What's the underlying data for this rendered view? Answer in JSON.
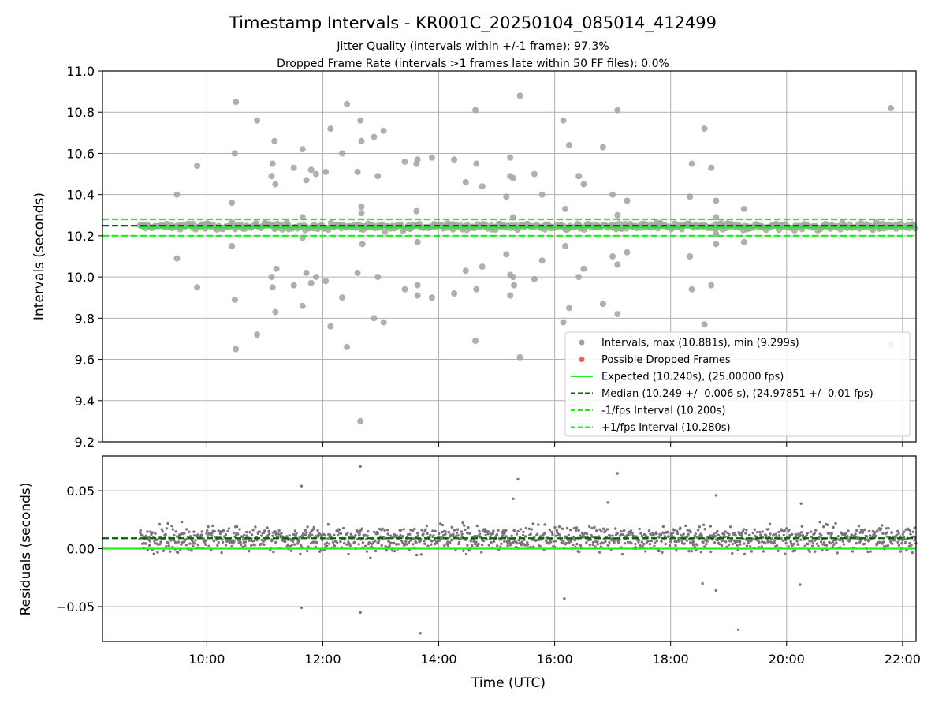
{
  "figure": {
    "title": "Timestamp Intervals - KR001C_20250104_085014_412499",
    "subtitle_line1": "Jitter Quality (intervals within +/-1 frame): 97.3%",
    "subtitle_line2": "Dropped Frame Rate (intervals >1 frames late within 50 FF files): 0.0%"
  },
  "chart_data": [
    {
      "type": "scatter",
      "xlabel": "",
      "ylabel": "Intervals (seconds)",
      "xlim": [
        "08:12",
        "22:14"
      ],
      "ylim": [
        9.2,
        11.0
      ],
      "y_ticks": [
        "9.2",
        "9.4",
        "9.6",
        "9.8",
        "10.0",
        "10.2",
        "10.4",
        "10.6",
        "10.8",
        "11.0"
      ],
      "x_ticks": [
        "10:00",
        "12:00",
        "14:00",
        "16:00",
        "18:00",
        "20:00",
        "22:00"
      ],
      "grid": true,
      "legend_position": "bottom-right",
      "legend": [
        {
          "label": "Intervals, max (10.881s), min (9.299s)",
          "marker": "circle",
          "color": "#a0a0a0"
        },
        {
          "label": "Possible Dropped Frames",
          "marker": "circle",
          "color": "#f06060"
        },
        {
          "label": "Expected (10.240s), (25.00000 fps)",
          "marker": "solid-line",
          "color": "#22ee22"
        },
        {
          "label": "Median (10.249 +/- 0.006 s), (24.97851 +/- 0.01 fps)",
          "marker": "dashed-line",
          "color": "#006400"
        },
        {
          "label": "-1/fps Interval (10.200s)",
          "marker": "dashed-line",
          "color": "#22ee22"
        },
        {
          "label": "+1/fps Interval (10.280s)",
          "marker": "dashed-line",
          "color": "#22ee22"
        }
      ],
      "reference_lines": {
        "expected": 10.24,
        "median": 10.249,
        "minus_one_fps": 10.2,
        "plus_one_fps": 10.28
      },
      "x_start": "08:50",
      "x_end": "22:14",
      "band_center": 10.245,
      "series": [
        {
          "name": "Intervals, max (10.881s), min (9.299s)",
          "points": [
            [
              "09:29",
              10.4
            ],
            [
              "09:29",
              10.09
            ],
            [
              "09:50",
              10.54
            ],
            [
              "09:50",
              9.95
            ],
            [
              "10:26",
              10.36
            ],
            [
              "10:26",
              10.15
            ],
            [
              "10:29",
              10.6
            ],
            [
              "10:29",
              9.89
            ],
            [
              "10:30",
              10.85
            ],
            [
              "10:30",
              9.65
            ],
            [
              "10:52",
              10.76
            ],
            [
              "10:52",
              9.72
            ],
            [
              "11:07",
              10.49
            ],
            [
              "11:07",
              10.0
            ],
            [
              "11:08",
              10.55
            ],
            [
              "11:08",
              9.95
            ],
            [
              "11:10",
              10.66
            ],
            [
              "11:11",
              10.45
            ],
            [
              "11:11",
              9.83
            ],
            [
              "11:12",
              10.04
            ],
            [
              "11:30",
              10.53
            ],
            [
              "11:30",
              9.96
            ],
            [
              "11:39",
              10.62
            ],
            [
              "11:39",
              10.29
            ],
            [
              "11:39",
              10.19
            ],
            [
              "11:39",
              9.86
            ],
            [
              "11:43",
              10.47
            ],
            [
              "11:43",
              10.02
            ],
            [
              "11:48",
              10.52
            ],
            [
              "11:48",
              9.97
            ],
            [
              "11:53",
              10.5
            ],
            [
              "11:53",
              10.0
            ],
            [
              "12:03",
              10.51
            ],
            [
              "12:03",
              9.98
            ],
            [
              "12:08",
              10.72
            ],
            [
              "12:08",
              9.76
            ],
            [
              "12:20",
              10.6
            ],
            [
              "12:20",
              9.9
            ],
            [
              "12:25",
              10.84
            ],
            [
              "12:25",
              9.66
            ],
            [
              "12:36",
              10.51
            ],
            [
              "12:36",
              10.02
            ],
            [
              "12:39",
              10.76
            ],
            [
              "12:39",
              9.3
            ],
            [
              "12:40",
              10.66
            ],
            [
              "12:40",
              10.34
            ],
            [
              "12:40",
              10.31
            ],
            [
              "12:41",
              10.16
            ],
            [
              "12:53",
              10.68
            ],
            [
              "12:53",
              9.8
            ],
            [
              "12:57",
              10.49
            ],
            [
              "12:57",
              10.0
            ],
            [
              "13:03",
              10.71
            ],
            [
              "13:03",
              9.78
            ],
            [
              "13:25",
              10.56
            ],
            [
              "13:25",
              9.94
            ],
            [
              "13:37",
              10.55
            ],
            [
              "13:37",
              10.32
            ],
            [
              "13:38",
              10.57
            ],
            [
              "13:38",
              10.17
            ],
            [
              "13:38",
              9.91
            ],
            [
              "13:38",
              9.96
            ],
            [
              "13:53",
              10.58
            ],
            [
              "13:53",
              9.9
            ],
            [
              "14:16",
              10.57
            ],
            [
              "14:16",
              9.92
            ],
            [
              "14:28",
              10.46
            ],
            [
              "14:28",
              10.03
            ],
            [
              "14:38",
              10.81
            ],
            [
              "14:38",
              9.69
            ],
            [
              "14:39",
              10.55
            ],
            [
              "14:39",
              9.94
            ],
            [
              "14:45",
              10.44
            ],
            [
              "14:45",
              10.05
            ],
            [
              "15:10",
              10.39
            ],
            [
              "15:10",
              10.11
            ],
            [
              "15:14",
              10.49
            ],
            [
              "15:14",
              10.01
            ],
            [
              "15:14",
              10.58
            ],
            [
              "15:14",
              9.91
            ],
            [
              "15:17",
              10.29
            ],
            [
              "15:17",
              10.48
            ],
            [
              "15:17",
              10.0
            ],
            [
              "15:18",
              9.96
            ],
            [
              "15:24",
              10.88
            ],
            [
              "15:24",
              9.61
            ],
            [
              "15:39",
              10.5
            ],
            [
              "15:39",
              9.99
            ],
            [
              "15:47",
              10.4
            ],
            [
              "15:47",
              10.08
            ],
            [
              "16:09",
              10.76
            ],
            [
              "16:09",
              9.78
            ],
            [
              "16:11",
              10.33
            ],
            [
              "16:11",
              10.15
            ],
            [
              "16:15",
              10.64
            ],
            [
              "16:15",
              9.85
            ],
            [
              "16:25",
              10.49
            ],
            [
              "16:25",
              10.0
            ],
            [
              "16:30",
              10.45
            ],
            [
              "16:30",
              10.04
            ],
            [
              "16:50",
              10.63
            ],
            [
              "16:50",
              9.87
            ],
            [
              "17:00",
              10.4
            ],
            [
              "17:00",
              10.1
            ],
            [
              "17:05",
              10.81
            ],
            [
              "17:05",
              9.82
            ],
            [
              "17:05",
              10.3
            ],
            [
              "17:05",
              10.06
            ],
            [
              "17:15",
              10.37
            ],
            [
              "17:15",
              10.12
            ],
            [
              "18:20",
              10.39
            ],
            [
              "18:20",
              10.1
            ],
            [
              "18:22",
              10.55
            ],
            [
              "18:22",
              9.94
            ],
            [
              "18:35",
              10.72
            ],
            [
              "18:35",
              9.77
            ],
            [
              "18:42",
              10.53
            ],
            [
              "18:42",
              9.96
            ],
            [
              "18:47",
              10.37
            ],
            [
              "18:47",
              10.16
            ],
            [
              "18:47",
              10.29
            ],
            [
              "18:47",
              10.21
            ],
            [
              "19:16",
              10.33
            ],
            [
              "19:16",
              10.17
            ],
            [
              "21:48",
              10.82
            ],
            [
              "21:48",
              9.67
            ]
          ]
        }
      ]
    },
    {
      "type": "scatter",
      "xlabel": "Time (UTC)",
      "ylabel": "Residuals (seconds)",
      "xlim": [
        "08:12",
        "22:14"
      ],
      "ylim": [
        -0.08,
        0.08
      ],
      "y_ticks": [
        "−0.05",
        "0.00",
        "0.05"
      ],
      "x_ticks": [
        "10:00",
        "12:00",
        "14:00",
        "16:00",
        "18:00",
        "20:00",
        "22:00"
      ],
      "grid": true,
      "reference_lines": {
        "expected": 0.0,
        "median": 0.009
      },
      "x_start": "08:50",
      "x_end": "22:14",
      "outliers": [
        [
          "11:38",
          0.054
        ],
        [
          "11:38",
          -0.051
        ],
        [
          "12:39",
          0.071
        ],
        [
          "12:39",
          -0.055
        ],
        [
          "13:41",
          -0.073
        ],
        [
          "15:22",
          0.06
        ],
        [
          "16:10",
          -0.043
        ],
        [
          "17:05",
          0.065
        ],
        [
          "18:47",
          0.046
        ],
        [
          "18:47",
          -0.036
        ],
        [
          "19:10",
          -0.07
        ],
        [
          "20:14",
          -0.031
        ],
        [
          "20:15",
          0.039
        ],
        [
          "18:33",
          -0.03
        ],
        [
          "16:55",
          0.04
        ],
        [
          "15:17",
          0.043
        ]
      ]
    }
  ],
  "colors": {
    "points": "#a6a6a6",
    "residual_points": "#777777",
    "expected": "#22ee22",
    "median": "#006400",
    "grid": "#b0b0b0"
  }
}
